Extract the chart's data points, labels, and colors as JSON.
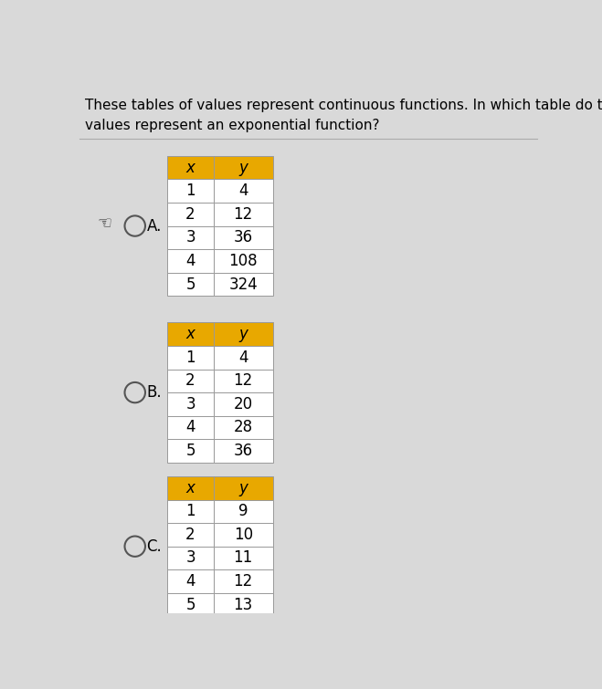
{
  "title_line1": "These tables of values represent continuous functions. In which table do the",
  "title_line2": "values represent an exponential function?",
  "background_color": "#d9d9d9",
  "table_bg": "#ffffff",
  "header_color": "#e8a800",
  "border_color": "#b0b0b0",
  "tables": [
    {
      "label": "A.",
      "x_vals": [
        1,
        2,
        3,
        4,
        5
      ],
      "y_vals": [
        "4",
        "12",
        "36",
        "108",
        "324"
      ],
      "selected": true
    },
    {
      "label": "B.",
      "x_vals": [
        1,
        2,
        3,
        4,
        5
      ],
      "y_vals": [
        "4",
        "12",
        "20",
        "28",
        "36"
      ],
      "selected": false
    },
    {
      "label": "C.",
      "x_vals": [
        1,
        2,
        3,
        4,
        5
      ],
      "y_vals": [
        "9",
        "10",
        "11",
        "12",
        "13"
      ],
      "selected": false
    }
  ],
  "col_x_label": "x",
  "col_y_label": "y",
  "font_size": 12,
  "title_font_size": 11
}
